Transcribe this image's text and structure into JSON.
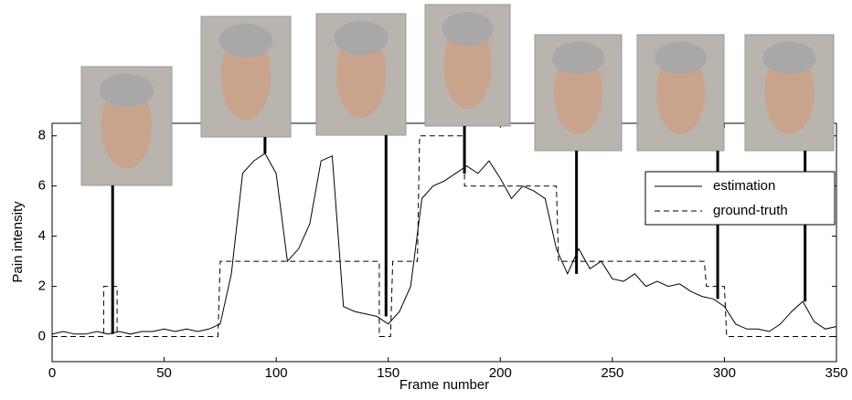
{
  "chart_data": {
    "type": "line",
    "xlabel": "Frame number",
    "ylabel": "Pain intensity",
    "xlim": [
      0,
      350
    ],
    "xticks": [
      0,
      50,
      100,
      150,
      200,
      250,
      300,
      350
    ],
    "ylim": [
      -1,
      8.5
    ],
    "yticks": [
      0,
      2,
      4,
      6,
      8
    ],
    "legend": "upper right",
    "frame_markers": [
      27,
      95,
      149,
      184,
      234,
      297,
      336
    ],
    "series": [
      {
        "name": "estimation",
        "color": "#000000",
        "dash": "solid",
        "x": [
          0,
          5,
          10,
          15,
          20,
          25,
          30,
          35,
          40,
          45,
          50,
          55,
          60,
          65,
          70,
          75,
          80,
          85,
          90,
          95,
          100,
          105,
          110,
          115,
          120,
          125,
          130,
          135,
          140,
          145,
          150,
          155,
          160,
          165,
          170,
          175,
          180,
          185,
          190,
          195,
          200,
          205,
          210,
          215,
          220,
          225,
          230,
          235,
          240,
          245,
          250,
          255,
          260,
          265,
          270,
          275,
          280,
          285,
          290,
          295,
          300,
          305,
          310,
          315,
          320,
          325,
          330,
          335,
          340,
          345,
          350
        ],
        "values": [
          0.1,
          0.2,
          0.1,
          0.1,
          0.2,
          0.1,
          0.2,
          0.1,
          0.2,
          0.2,
          0.3,
          0.2,
          0.3,
          0.2,
          0.3,
          0.5,
          2.5,
          6.5,
          7,
          7.3,
          6.5,
          3,
          3.5,
          4.5,
          7,
          7.2,
          1.2,
          1,
          0.9,
          0.8,
          0.5,
          1,
          2,
          5.5,
          6,
          6.2,
          6.5,
          6.8,
          6.5,
          7,
          6.3,
          5.5,
          6,
          5.8,
          5.5,
          3.5,
          2.5,
          3.5,
          2.7,
          3,
          2.3,
          2.2,
          2.5,
          2,
          2.2,
          2,
          2.1,
          1.8,
          1.6,
          1.5,
          1.2,
          0.5,
          0.3,
          0.3,
          0.2,
          0.5,
          1,
          1.4,
          0.6,
          0.3,
          0.4
        ]
      },
      {
        "name": "ground-truth",
        "color": "#000000",
        "dash": "dashed",
        "x": [
          0,
          23,
          23,
          29,
          29,
          74,
          75,
          146,
          146,
          151,
          152,
          163,
          164,
          184,
          184,
          225,
          226,
          291,
          292,
          300,
          301,
          350
        ],
        "values": [
          0,
          0,
          2,
          2,
          0,
          0,
          3,
          3,
          0,
          0,
          3,
          3,
          8,
          8,
          6,
          6,
          3,
          3,
          2,
          2,
          0,
          0
        ]
      }
    ]
  }
}
